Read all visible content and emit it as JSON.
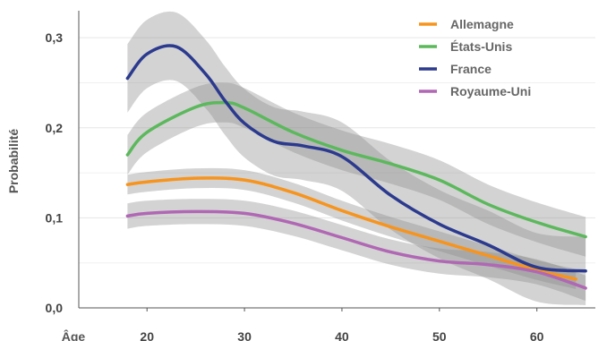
{
  "chart_data": {
    "type": "line",
    "xlabel": "Âge",
    "ylabel": "Probabilité",
    "xlim": [
      13,
      66
    ],
    "ylim": [
      0,
      0.33
    ],
    "x_ticks": [
      "20",
      "30",
      "40",
      "50",
      "60"
    ],
    "y_ticks": [
      "0,0",
      "0,1",
      "0,2",
      "0,3"
    ],
    "grid": "horizontal",
    "legend_position": "top-right",
    "series": [
      {
        "name": "Allemagne",
        "color": "#f7941d",
        "x": [
          18,
          20,
          25,
          30,
          35,
          40,
          45,
          50,
          55,
          60,
          64
        ],
        "y": [
          0.137,
          0.14,
          0.144,
          0.142,
          0.128,
          0.108,
          0.09,
          0.074,
          0.058,
          0.042,
          0.032
        ],
        "band": 0.011
      },
      {
        "name": "États-Unis",
        "color": "#5cb85c",
        "x": [
          18,
          20,
          25,
          28,
          30,
          35,
          40,
          45,
          50,
          55,
          60,
          65
        ],
        "y": [
          0.17,
          0.195,
          0.223,
          0.228,
          0.222,
          0.195,
          0.175,
          0.16,
          0.142,
          0.115,
          0.095,
          0.079
        ],
        "band": 0.022
      },
      {
        "name": "France",
        "color": "#2b3a8e",
        "x": [
          18,
          20,
          23,
          26,
          28,
          30,
          33,
          36,
          40,
          45,
          50,
          55,
          60,
          65
        ],
        "y": [
          0.255,
          0.282,
          0.29,
          0.26,
          0.23,
          0.205,
          0.185,
          0.18,
          0.168,
          0.125,
          0.093,
          0.07,
          0.045,
          0.041
        ],
        "band": 0.038
      },
      {
        "name": "Royaume-Uni",
        "color": "#b067b4",
        "x": [
          18,
          20,
          25,
          30,
          35,
          40,
          45,
          50,
          55,
          60,
          65
        ],
        "y": [
          0.102,
          0.105,
          0.107,
          0.105,
          0.094,
          0.078,
          0.062,
          0.052,
          0.048,
          0.04,
          0.022
        ],
        "band": 0.014
      }
    ]
  }
}
